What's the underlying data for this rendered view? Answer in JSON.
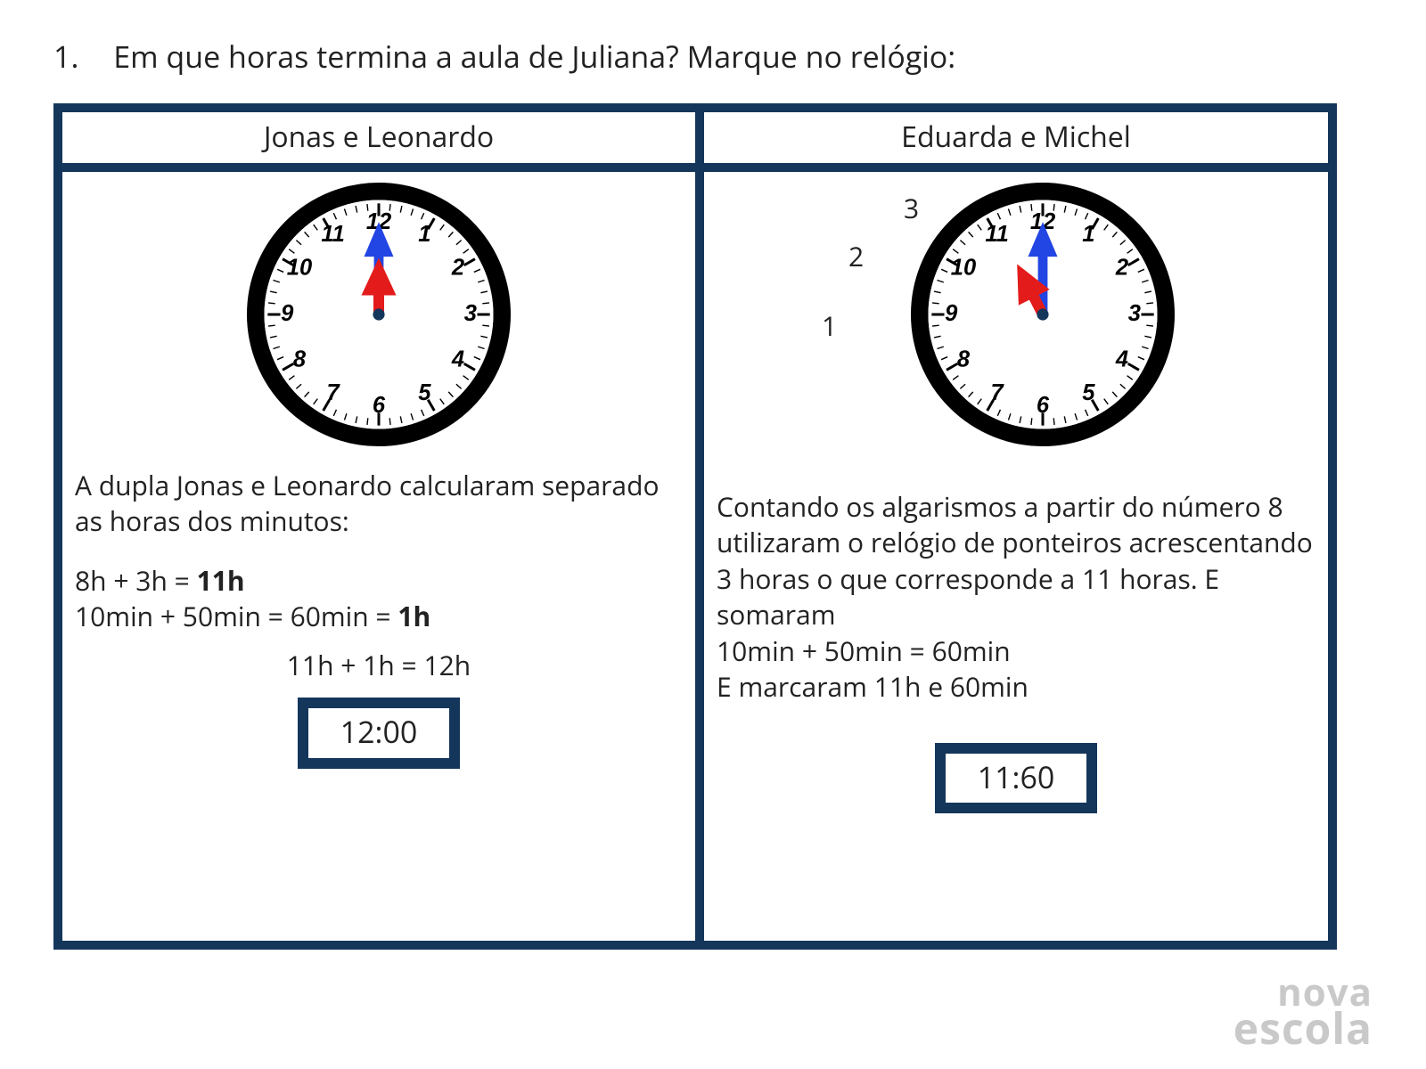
{
  "question": {
    "number": "1.",
    "text": "Em que horas termina a aula de Juliana? Marque no relógio:"
  },
  "border_color": "#14365b",
  "left": {
    "header": "Jonas e Leonardo",
    "clock": {
      "numbers": [
        "12",
        "1",
        "2",
        "3",
        "4",
        "5",
        "6",
        "7",
        "8",
        "9",
        "10",
        "11"
      ],
      "rim_color": "#000000",
      "face_color": "#ffffff",
      "hour_hand": {
        "angle_deg": 0,
        "length": 55,
        "color": "#e31b1b"
      },
      "minute_hand": {
        "angle_deg": 0,
        "length": 90,
        "color": "#2246e3"
      },
      "pivot_color": "#14365b"
    },
    "para": "A dupla Jonas e Leonardo calcularam separado as horas dos minutos:",
    "eq1_pre": "8h + 3h = ",
    "eq1_bold": "11h",
    "eq2_pre": "10min + 50min = 60min = ",
    "eq2_bold": "1h",
    "eq3": "11h + 1h = 12h",
    "digital": "12:00"
  },
  "right": {
    "header": "Eduarda e Michel",
    "counts": [
      "1",
      "2",
      "3"
    ],
    "clock": {
      "numbers": [
        "12",
        "1",
        "2",
        "3",
        "4",
        "5",
        "6",
        "7",
        "8",
        "9",
        "10",
        "11"
      ],
      "rim_color": "#000000",
      "face_color": "#ffffff",
      "hour_hand": {
        "angle_deg": -27,
        "length": 55,
        "color": "#e31b1b"
      },
      "minute_hand": {
        "angle_deg": 0,
        "length": 90,
        "color": "#2246e3"
      },
      "pivot_color": "#14365b"
    },
    "para1": "Contando os algarismos a partir do número 8 utilizaram o relógio de ponteiros acrescentando 3 horas o que corresponde  a 11 horas. E somaram",
    "para2": "10min + 50min = 60min",
    "para3": "E marcaram 11h e 60min",
    "digital": "11:60"
  },
  "brand": {
    "line1": "nova",
    "line2": "escola"
  }
}
